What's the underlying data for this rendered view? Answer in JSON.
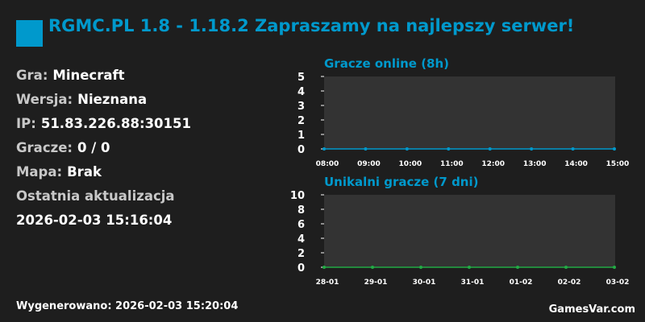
{
  "header": {
    "title": "RGMC.PL 1.8 - 1.18.2 Zapraszamy na najlepszy serwer!",
    "logo_color": "#0099cc"
  },
  "info": [
    {
      "label": "Gra:",
      "value": "Minecraft"
    },
    {
      "label": "Wersja:",
      "value": "Nieznana"
    },
    {
      "label": "IP:",
      "value": "51.83.226.88:30151"
    },
    {
      "label": "Gracze:",
      "value": "0 / 0"
    },
    {
      "label": "Mapa:",
      "value": "Brak"
    },
    {
      "label": "Ostatnia aktualizacja",
      "value": ""
    },
    {
      "label": "",
      "value": "2026-02-03 15:16:04"
    }
  ],
  "footer": {
    "generated": "Wygenerowano: 2026-02-03 15:20:04",
    "brand": "GamesVar.com"
  },
  "chart_data": [
    {
      "type": "line",
      "title": "Gracze online (8h)",
      "categories": [
        "08:00",
        "09:00",
        "10:00",
        "11:00",
        "12:00",
        "13:00",
        "14:00",
        "15:00"
      ],
      "values": [
        0,
        0,
        0,
        0,
        0,
        0,
        0,
        0
      ],
      "ylim": [
        0,
        5
      ],
      "yticks": [
        "0",
        "1",
        "2",
        "3",
        "4",
        "5"
      ],
      "color": "#0099cc",
      "grid": false
    },
    {
      "type": "line",
      "title": "Unikalni gracze (7 dni)",
      "categories": [
        "28-01",
        "29-01",
        "30-01",
        "31-01",
        "01-02",
        "02-02",
        "03-02"
      ],
      "values": [
        0,
        0,
        0,
        0,
        0,
        0,
        0
      ],
      "ylim": [
        0,
        10
      ],
      "yticks": [
        "0",
        "2",
        "4",
        "6",
        "8",
        "10"
      ],
      "color": "#22aa44",
      "grid": false
    }
  ]
}
